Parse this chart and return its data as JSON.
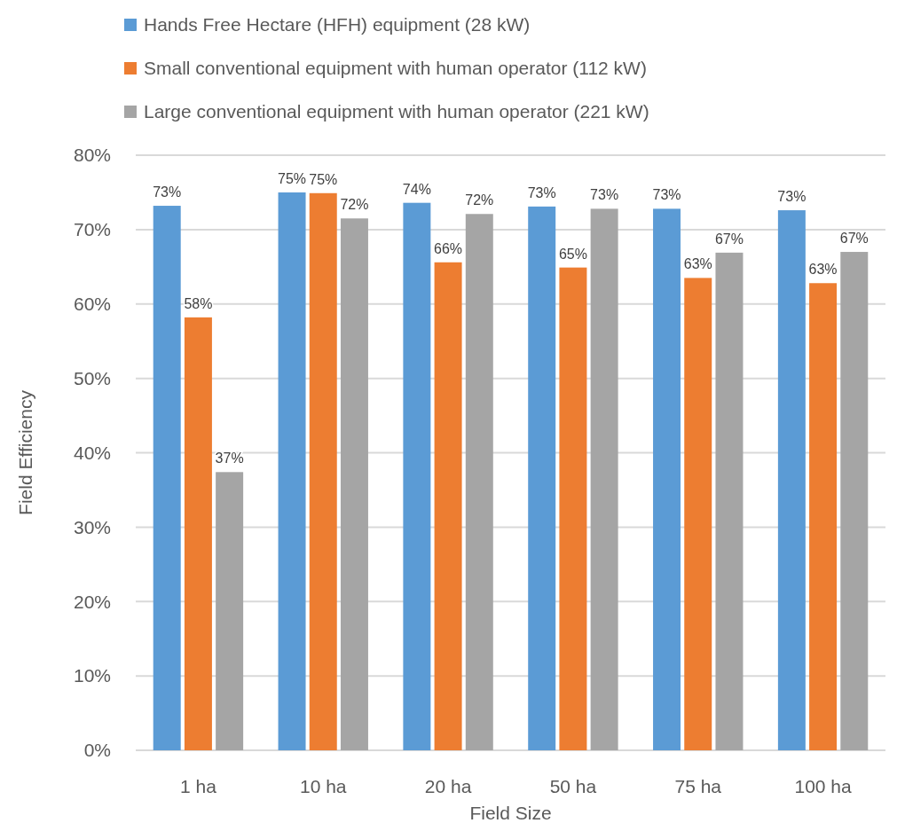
{
  "chart_data": {
    "type": "bar",
    "xlabel": "Field Size",
    "ylabel": "Field Efficiency",
    "categories": [
      "1 ha",
      "10 ha",
      "20 ha",
      "50 ha",
      "75 ha",
      "100 ha"
    ],
    "series": [
      {
        "name": "Hands Free Hectare (HFH) equipment (28 kW)",
        "color": "#5b9bd5",
        "values": [
          73.2,
          75.0,
          73.6,
          73.1,
          72.8,
          72.6
        ],
        "value_labels": [
          "73%",
          "75%",
          "74%",
          "73%",
          "73%",
          "73%"
        ]
      },
      {
        "name": "Small conventional equipment with human operator (112 kW)",
        "color": "#ed7d31",
        "values": [
          58.2,
          74.9,
          65.6,
          64.9,
          63.5,
          62.8
        ],
        "value_labels": [
          "58%",
          "75%",
          "66%",
          "65%",
          "63%",
          "63%"
        ]
      },
      {
        "name": "Large conventional equipment with human operator (221 kW)",
        "color": "#a5a5a5",
        "values": [
          37.4,
          71.5,
          72.1,
          72.8,
          66.9,
          67.0
        ],
        "value_labels": [
          "37%",
          "72%",
          "72%",
          "73%",
          "67%",
          "67%"
        ]
      }
    ],
    "ylim": [
      0,
      80
    ],
    "yticks": [
      {
        "value": 0,
        "label": "0%"
      },
      {
        "value": 10,
        "label": "10%"
      },
      {
        "value": 20,
        "label": "20%"
      },
      {
        "value": 30,
        "label": "30%"
      },
      {
        "value": 40,
        "label": "40%"
      },
      {
        "value": 50,
        "label": "50%"
      },
      {
        "value": 60,
        "label": "60%"
      },
      {
        "value": 70,
        "label": "70%"
      },
      {
        "value": 80,
        "label": "80%"
      }
    ],
    "grid": "y",
    "legend": "top"
  }
}
